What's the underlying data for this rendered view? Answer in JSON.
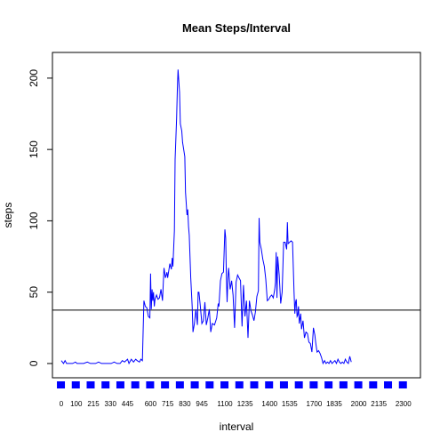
{
  "chart_data": {
    "type": "line",
    "title": "Mean Steps/Interval",
    "xlabel": "interval",
    "ylabel": "steps",
    "xlim": [
      -60,
      2415
    ],
    "ylim": [
      -10,
      218
    ],
    "yticks": [
      0,
      50,
      100,
      150,
      200
    ],
    "xticks": [
      {
        "v": 0,
        "label": "0"
      },
      {
        "v": 100,
        "label": "100"
      },
      {
        "v": 215,
        "label": "215"
      },
      {
        "v": 330,
        "label": "330"
      },
      {
        "v": 445,
        "label": "445"
      },
      {
        "v": 600,
        "label": "600"
      },
      {
        "v": 715,
        "label": "715"
      },
      {
        "v": 830,
        "label": "830"
      },
      {
        "v": 945,
        "label": "945"
      },
      {
        "v": 1100,
        "label": "1100"
      },
      {
        "v": 1235,
        "label": "1235"
      },
      {
        "v": 1400,
        "label": "1400"
      },
      {
        "v": 1535,
        "label": "1535"
      },
      {
        "v": 1700,
        "label": "1700"
      },
      {
        "v": 1835,
        "label": "1835"
      },
      {
        "v": 2000,
        "label": "2000"
      },
      {
        "v": 2135,
        "label": "2135"
      },
      {
        "v": 2300,
        "label": "2300"
      }
    ],
    "mean_line": 37.4,
    "series": [
      {
        "color": "#0000ff",
        "points": [
          [
            0,
            2
          ],
          [
            15,
            0
          ],
          [
            25,
            2
          ],
          [
            35,
            0
          ],
          [
            55,
            0
          ],
          [
            75,
            0
          ],
          [
            95,
            1
          ],
          [
            105,
            0
          ],
          [
            130,
            0
          ],
          [
            150,
            0
          ],
          [
            175,
            1
          ],
          [
            195,
            0
          ],
          [
            215,
            0
          ],
          [
            230,
            0
          ],
          [
            250,
            1
          ],
          [
            270,
            0
          ],
          [
            300,
            0
          ],
          [
            320,
            0
          ],
          [
            335,
            0
          ],
          [
            355,
            1
          ],
          [
            375,
            0
          ],
          [
            395,
            0
          ],
          [
            410,
            2
          ],
          [
            425,
            1
          ],
          [
            445,
            3
          ],
          [
            455,
            0
          ],
          [
            470,
            3
          ],
          [
            485,
            1
          ],
          [
            500,
            3
          ],
          [
            510,
            2
          ],
          [
            525,
            1
          ],
          [
            535,
            3
          ],
          [
            545,
            2
          ],
          [
            555,
            44
          ],
          [
            565,
            40
          ],
          [
            575,
            39
          ],
          [
            585,
            33
          ],
          [
            595,
            32
          ],
          [
            600,
            63
          ],
          [
            605,
            38
          ],
          [
            610,
            52
          ],
          [
            615,
            44
          ],
          [
            620,
            50
          ],
          [
            625,
            40
          ],
          [
            630,
            45
          ],
          [
            640,
            48
          ],
          [
            650,
            45
          ],
          [
            660,
            46
          ],
          [
            670,
            52
          ],
          [
            680,
            44
          ],
          [
            690,
            67
          ],
          [
            700,
            60
          ],
          [
            710,
            64
          ],
          [
            715,
            60
          ],
          [
            730,
            70
          ],
          [
            740,
            66
          ],
          [
            745,
            74
          ],
          [
            750,
            68
          ],
          [
            760,
            93
          ],
          [
            765,
            143
          ],
          [
            775,
            172
          ],
          [
            780,
            192
          ],
          [
            785,
            206
          ],
          [
            795,
            190
          ],
          [
            800,
            168
          ],
          [
            810,
            163
          ],
          [
            815,
            155
          ],
          [
            830,
            145
          ],
          [
            835,
            120
          ],
          [
            845,
            104
          ],
          [
            850,
            108
          ],
          [
            855,
            96
          ],
          [
            860,
            90
          ],
          [
            870,
            60
          ],
          [
            880,
            40
          ],
          [
            885,
            22
          ],
          [
            895,
            28
          ],
          [
            905,
            38
          ],
          [
            915,
            27
          ],
          [
            920,
            50
          ],
          [
            925,
            50
          ],
          [
            935,
            40
          ],
          [
            945,
            28
          ],
          [
            955,
            30
          ],
          [
            965,
            43
          ],
          [
            975,
            27
          ],
          [
            985,
            32
          ],
          [
            995,
            38
          ],
          [
            1005,
            22
          ],
          [
            1015,
            28
          ],
          [
            1030,
            27
          ],
          [
            1045,
            32
          ],
          [
            1055,
            42
          ],
          [
            1060,
            40
          ],
          [
            1070,
            58
          ],
          [
            1080,
            63
          ],
          [
            1090,
            64
          ],
          [
            1100,
            94
          ],
          [
            1105,
            88
          ],
          [
            1110,
            60
          ],
          [
            1115,
            43
          ],
          [
            1120,
            60
          ],
          [
            1125,
            67
          ],
          [
            1135,
            52
          ],
          [
            1145,
            58
          ],
          [
            1155,
            48
          ],
          [
            1165,
            25
          ],
          [
            1175,
            57
          ],
          [
            1185,
            62
          ],
          [
            1195,
            60
          ],
          [
            1205,
            58
          ],
          [
            1215,
            26
          ],
          [
            1225,
            55
          ],
          [
            1235,
            33
          ],
          [
            1245,
            44
          ],
          [
            1255,
            18
          ],
          [
            1265,
            44
          ],
          [
            1275,
            37
          ],
          [
            1285,
            34
          ],
          [
            1295,
            30
          ],
          [
            1305,
            36
          ],
          [
            1315,
            47
          ],
          [
            1325,
            51
          ],
          [
            1330,
            102
          ],
          [
            1335,
            85
          ],
          [
            1345,
            80
          ],
          [
            1355,
            73
          ],
          [
            1365,
            68
          ],
          [
            1375,
            59
          ],
          [
            1385,
            44
          ],
          [
            1395,
            45
          ],
          [
            1405,
            47
          ],
          [
            1415,
            48
          ],
          [
            1425,
            46
          ],
          [
            1435,
            52
          ],
          [
            1440,
            57
          ],
          [
            1445,
            78
          ],
          [
            1450,
            46
          ],
          [
            1455,
            75
          ],
          [
            1465,
            62
          ],
          [
            1475,
            42
          ],
          [
            1485,
            50
          ],
          [
            1495,
            85
          ],
          [
            1505,
            85
          ],
          [
            1515,
            80
          ],
          [
            1520,
            99
          ],
          [
            1525,
            84
          ],
          [
            1535,
            85
          ],
          [
            1545,
            86
          ],
          [
            1555,
            85
          ],
          [
            1565,
            50
          ],
          [
            1570,
            35
          ],
          [
            1575,
            43
          ],
          [
            1580,
            45
          ],
          [
            1585,
            33
          ],
          [
            1590,
            34
          ],
          [
            1595,
            40
          ],
          [
            1600,
            28
          ],
          [
            1610,
            35
          ],
          [
            1615,
            24
          ],
          [
            1625,
            30
          ],
          [
            1635,
            18
          ],
          [
            1645,
            22
          ],
          [
            1655,
            21
          ],
          [
            1665,
            15
          ],
          [
            1675,
            14
          ],
          [
            1685,
            8
          ],
          [
            1695,
            25
          ],
          [
            1705,
            20
          ],
          [
            1710,
            15
          ],
          [
            1720,
            8
          ],
          [
            1730,
            9
          ],
          [
            1740,
            7
          ],
          [
            1750,
            4
          ],
          [
            1760,
            0
          ],
          [
            1770,
            2
          ],
          [
            1780,
            0
          ],
          [
            1790,
            1
          ],
          [
            1800,
            0
          ],
          [
            1810,
            2
          ],
          [
            1820,
            0
          ],
          [
            1830,
            1
          ],
          [
            1840,
            2
          ],
          [
            1850,
            0
          ],
          [
            1860,
            3
          ],
          [
            1870,
            1
          ],
          [
            1880,
            0
          ],
          [
            1890,
            1
          ],
          [
            1900,
            0
          ],
          [
            1910,
            3
          ],
          [
            1920,
            1
          ],
          [
            1930,
            0
          ],
          [
            1940,
            5
          ],
          [
            1950,
            1
          ]
        ]
      }
    ]
  }
}
